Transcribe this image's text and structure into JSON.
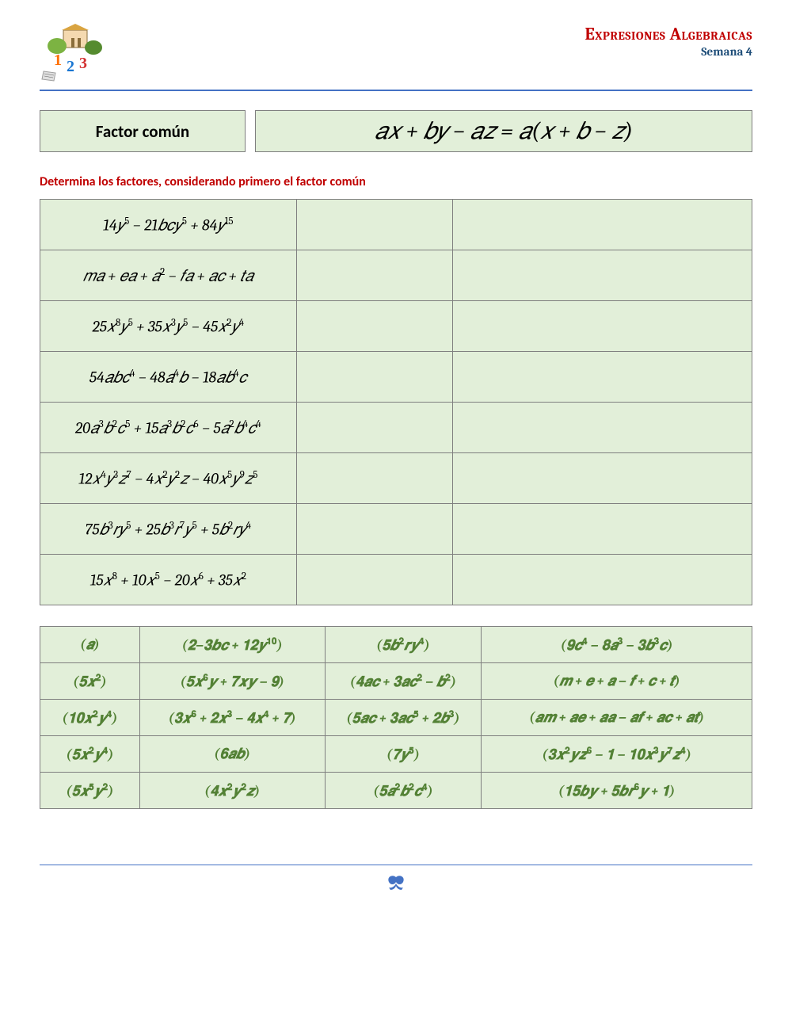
{
  "header": {
    "title": "Expresiones Algebraicas",
    "title_color": "#c00000",
    "subtitle": "Semana 4",
    "subtitle_color": "#1f4e79",
    "hr_color": "#4472c4"
  },
  "formula": {
    "label": "Factor común",
    "expression": "𝑎𝑥 + 𝑏𝑦 − 𝑎𝑧 = 𝑎(𝑥 + 𝑏 − 𝑧)",
    "bg_color": "#e2efd9",
    "border_color": "#7f7f7f"
  },
  "instruction": {
    "text": "Determina los factores, considerando primero el factor común",
    "color": "#c00000"
  },
  "problems_table": {
    "bg_color": "#e2efd9",
    "border_color": "#7f7f7f",
    "rows": [
      {
        "expr_html": "14𝑦<sup>5</sup> − 21𝑏𝑐𝑦<sup>5</sup> + 84𝑦<sup>15</sup>"
      },
      {
        "expr_html": "𝑚𝑎 + 𝑒𝑎 + 𝑎<sup>2</sup> − 𝑓𝑎 + 𝑎𝑐 + 𝑡𝑎"
      },
      {
        "expr_html": "25𝑥<sup>8</sup>𝑦<sup>5</sup> + 35𝑥<sup>3</sup>𝑦<sup>5</sup> − 45𝑥<sup>2</sup>𝑦<sup>4</sup>"
      },
      {
        "expr_html": "54𝑎𝑏𝑐<sup>4</sup> − 48𝑎<sup>4</sup>𝑏 − 18𝑎𝑏<sup>4</sup>𝑐"
      },
      {
        "expr_html": "20𝑎<sup>3</sup>𝑏<sup>2</sup>𝑐<sup>5</sup> + 15𝑎<sup>3</sup>𝑏<sup>2</sup>𝑐<sup>6</sup> − 5𝑎<sup>2</sup>𝑏<sup>4</sup>𝑐<sup>4</sup>"
      },
      {
        "expr_html": "12𝑥<sup>4</sup>𝑦<sup>3</sup>𝑧<sup>7</sup> − 4𝑥<sup>2</sup>𝑦<sup>2</sup>𝑧 − 40𝑥<sup>5</sup>𝑦<sup>9</sup>𝑧<sup>5</sup>"
      },
      {
        "expr_html": "75𝑏<sup>3</sup>𝑟𝑦<sup>5</sup> + 25𝑏<sup>3</sup>𝑟<sup>7</sup>𝑦<sup>5</sup> + 5𝑏<sup>2</sup>𝑟𝑦<sup>4</sup>"
      },
      {
        "expr_html": "15𝑥<sup>8</sup> + 10𝑥<sup>5</sup> − 20𝑥<sup>6</sup> + 35𝑥<sup>2</sup>"
      }
    ]
  },
  "answers_table": {
    "bg_color": "#e2efd9",
    "border_color": "#7f7f7f",
    "text_color": "#538135",
    "rows": [
      [
        {
          "html": "(𝒂)"
        },
        {
          "html": "(𝟐−𝟑𝒃𝒄 + 𝟏𝟐𝒚<sup>𝟏𝟎</sup>)"
        },
        {
          "html": "(𝟓𝒃<sup>𝟐</sup>𝒓𝒚<sup>𝟒</sup>)"
        },
        {
          "html": "(𝟗𝒄<sup>𝟒</sup> − 𝟖𝒂<sup>𝟑</sup> − 𝟑𝒃<sup>𝟑</sup>𝒄)"
        }
      ],
      [
        {
          "html": "(𝟓𝒙<sup>𝟐</sup>)"
        },
        {
          "html": "(𝟓𝒙<sup>𝟔</sup>𝒚 + 𝟕𝒙𝒚 − 𝟗)"
        },
        {
          "html": "(𝟒𝒂𝒄 + 𝟑𝒂𝒄<sup>𝟐</sup> − 𝒃<sup>𝟐</sup>)"
        },
        {
          "html": "(𝒎 + 𝒆 + 𝒂 − 𝒇 + 𝒄 + 𝒕)"
        }
      ],
      [
        {
          "html": "(𝟏𝟎𝒙<sup>𝟐</sup>𝒚<sup>𝟒</sup>)"
        },
        {
          "html": "(𝟑𝒙<sup>𝟔</sup> + 𝟐𝒙<sup>𝟑</sup> − 𝟒𝒙<sup>𝟒</sup> + 𝟕)"
        },
        {
          "html": "(𝟓𝒂𝒄 + 𝟑𝒂𝒄<sup>𝟓</sup> + 𝟐𝒃<sup>𝟑</sup>)"
        },
        {
          "html": "(𝒂𝒎 + 𝒂𝒆 + 𝒂𝒂 − 𝒂𝒇 + 𝒂𝒄 + 𝒂𝒕)"
        }
      ],
      [
        {
          "html": "(𝟓𝒙<sup>𝟐</sup>𝒚<sup>𝟒</sup>)"
        },
        {
          "html": "(𝟔𝒂𝒃)"
        },
        {
          "html": "(𝟕𝒚<sup>𝟓</sup>)"
        },
        {
          "html": "(𝟑𝒙<sup>𝟐</sup>𝒚𝒛<sup>𝟔</sup> − 𝟏 − 𝟏𝟎𝒙<sup>𝟑</sup>𝒚<sup>𝟕</sup>𝒛<sup>𝟒</sup>)"
        }
      ],
      [
        {
          "html": "(𝟓𝒙<sup>𝟓</sup>𝒚<sup>𝟐</sup>)"
        },
        {
          "html": "(𝟒𝒙<sup>𝟐</sup>𝒚<sup>𝟐</sup>𝒛)"
        },
        {
          "html": "(𝟓𝒂<sup>𝟐</sup>𝒃<sup>𝟐</sup>𝒄<sup>𝟒</sup>)"
        },
        {
          "html": "(𝟏𝟓𝒃𝒚 + 𝟓𝒃𝒓<sup>𝟔</sup>𝒚 + 𝟏)"
        }
      ]
    ]
  },
  "footer": {
    "icon_color": "#4472c4",
    "hr_color": "#4472c4"
  }
}
